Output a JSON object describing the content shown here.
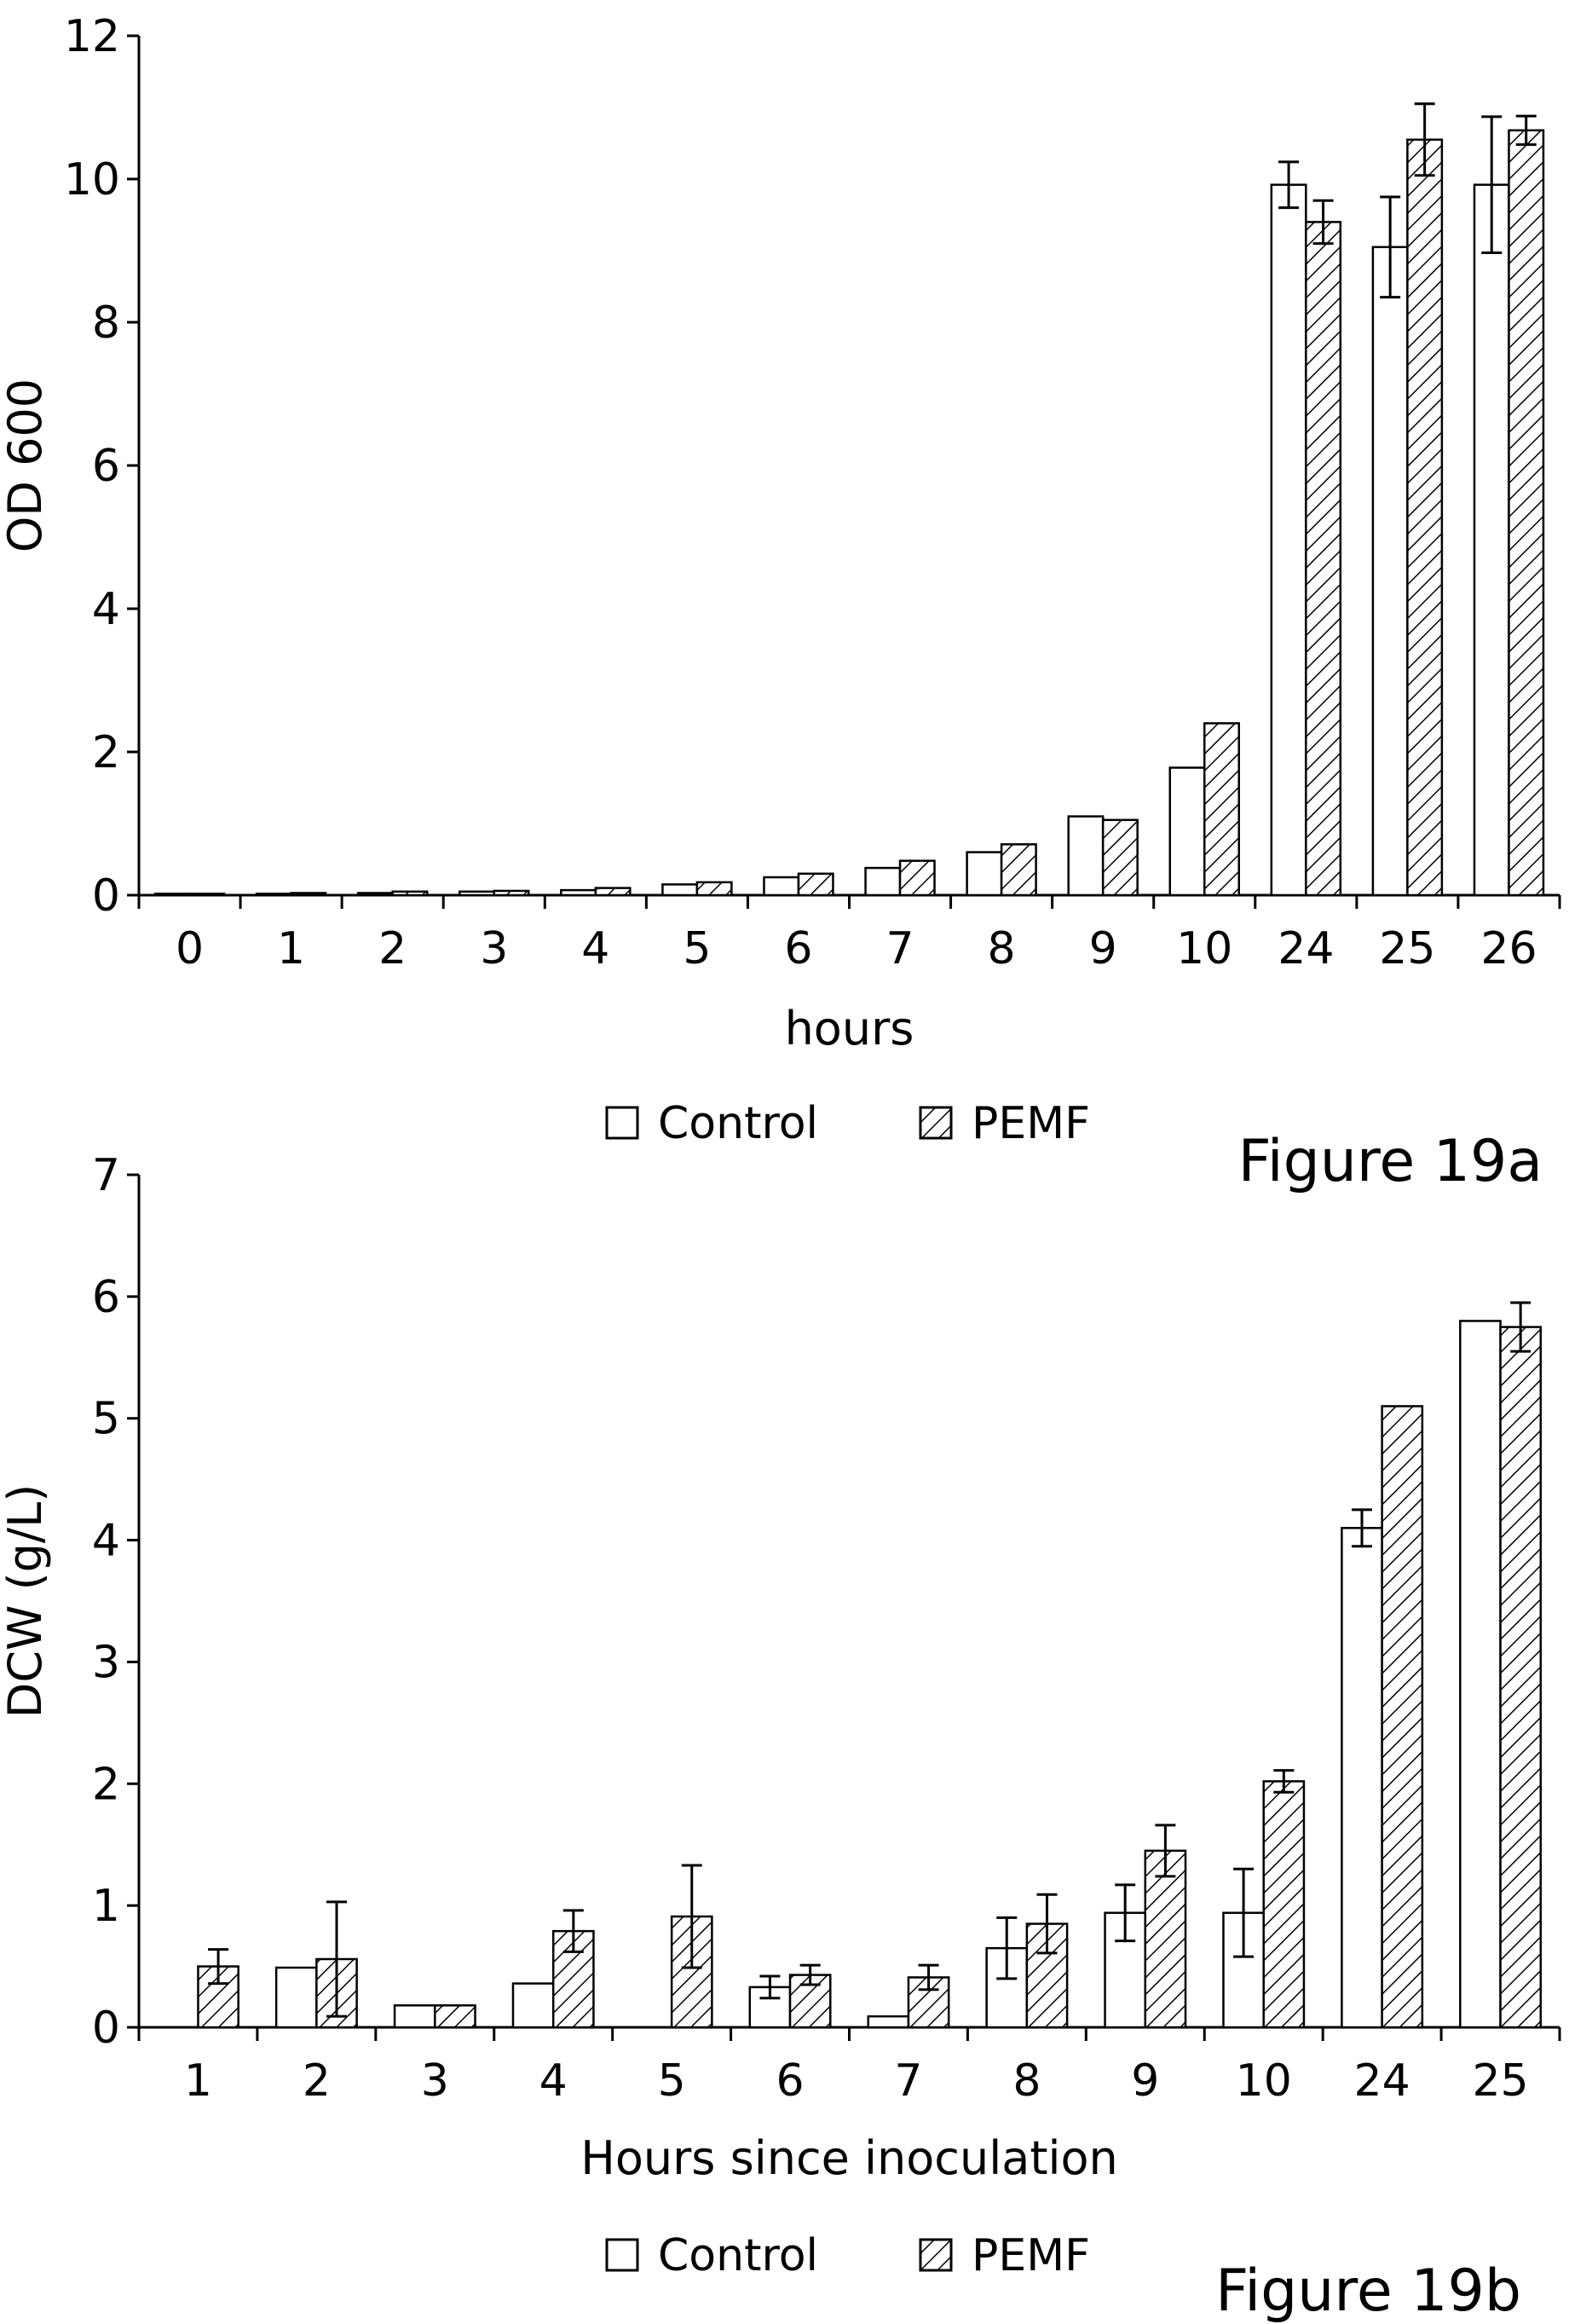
{
  "page": {
    "figure_a_caption": "Figure 19a",
    "figure_b_caption": "Figure 19b"
  },
  "colors": {
    "ink": "#000000",
    "control_fill": "#ffffff",
    "pemf_fill": "#ffffff"
  },
  "chart_data": [
    {
      "type": "bar",
      "caption": "Figure 19a",
      "xlabel": "hours",
      "ylabel": "OD 600",
      "ylim": [
        0,
        12
      ],
      "yticks": [
        0,
        2,
        4,
        6,
        8,
        10,
        12
      ],
      "categories": [
        "0",
        "1",
        "2",
        "3",
        "4",
        "5",
        "6",
        "7",
        "8",
        "9",
        "10",
        "24",
        "25",
        "26"
      ],
      "legend": {
        "placement": "bottom-center"
      },
      "grid": false,
      "series": [
        {
          "name": "Control",
          "pattern": "open",
          "values": [
            0.02,
            0.02,
            0.03,
            0.05,
            0.07,
            0.15,
            0.25,
            0.38,
            0.6,
            1.1,
            1.78,
            9.92,
            9.05,
            9.92
          ],
          "errors": [
            null,
            null,
            null,
            null,
            null,
            null,
            null,
            null,
            null,
            null,
            null,
            0.32,
            0.7,
            0.95
          ]
        },
        {
          "name": "PEMF",
          "pattern": "hatched",
          "values": [
            0.02,
            0.03,
            0.05,
            0.06,
            0.1,
            0.18,
            0.3,
            0.48,
            0.71,
            1.05,
            2.4,
            9.4,
            10.55,
            10.68
          ],
          "errors": [
            null,
            null,
            null,
            null,
            null,
            null,
            null,
            null,
            null,
            null,
            null,
            0.3,
            0.5,
            0.2
          ]
        }
      ]
    },
    {
      "type": "bar",
      "caption": "Figure 19b",
      "xlabel": "Hours since inoculation",
      "ylabel": "DCW (g/L)",
      "ylim": [
        0,
        7
      ],
      "yticks": [
        0,
        1,
        2,
        3,
        4,
        5,
        6,
        7
      ],
      "categories": [
        "1",
        "2",
        "3",
        "4",
        "5",
        "6",
        "7",
        "8",
        "9",
        "10",
        "24",
        "25"
      ],
      "legend": {
        "placement": "bottom-center"
      },
      "grid": false,
      "series": [
        {
          "name": "Control",
          "pattern": "open",
          "values": [
            0,
            0.49,
            0.18,
            0.36,
            0,
            0.33,
            0.09,
            0.65,
            0.94,
            0.94,
            4.1,
            5.8
          ],
          "errors": [
            null,
            null,
            null,
            null,
            null,
            0.09,
            null,
            0.25,
            0.23,
            0.36,
            0.15,
            null
          ]
        },
        {
          "name": "PEMF",
          "pattern": "hatched",
          "values": [
            0.5,
            0.56,
            0.18,
            0.79,
            0.91,
            0.43,
            0.41,
            0.85,
            1.45,
            2.02,
            5.1,
            5.75
          ],
          "errors": [
            0.14,
            0.47,
            null,
            0.17,
            0.42,
            0.08,
            0.1,
            0.24,
            0.21,
            0.09,
            null,
            0.2
          ]
        }
      ]
    }
  ]
}
